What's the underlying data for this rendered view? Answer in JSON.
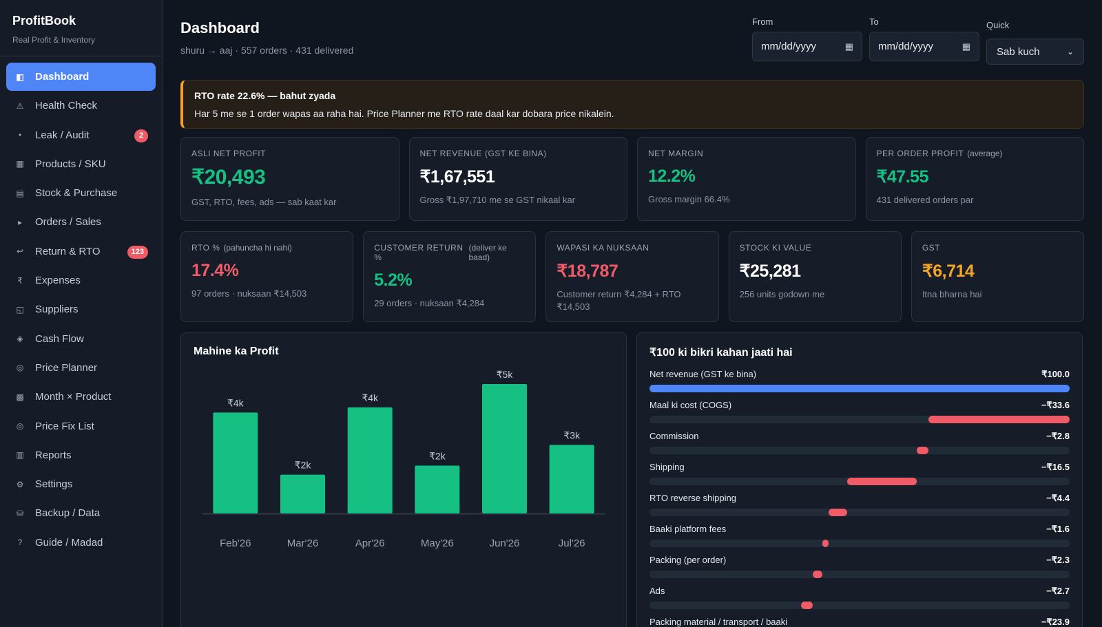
{
  "brand": {
    "title": "ProfitBook",
    "subtitle": "Real Profit & Inventory"
  },
  "nav": [
    {
      "label": "Dashboard",
      "icon": "◧",
      "name": "dashboard",
      "active": true,
      "badge": ""
    },
    {
      "label": "Health Check",
      "icon": "⚠",
      "name": "health-check",
      "active": false,
      "badge": ""
    },
    {
      "label": "Leak / Audit",
      "icon": "•",
      "name": "leak-audit",
      "active": false,
      "badge": "2"
    },
    {
      "label": "Products / SKU",
      "icon": "▦",
      "name": "products-sku",
      "active": false,
      "badge": ""
    },
    {
      "label": "Stock & Purchase",
      "icon": "▤",
      "name": "stock-purchase",
      "active": false,
      "badge": ""
    },
    {
      "label": "Orders / Sales",
      "icon": "▸",
      "name": "orders-sales",
      "active": false,
      "badge": ""
    },
    {
      "label": "Return & RTO",
      "icon": "↩",
      "name": "return-rto",
      "active": false,
      "badge": "123"
    },
    {
      "label": "Expenses",
      "icon": "₹",
      "name": "expenses",
      "active": false,
      "badge": ""
    },
    {
      "label": "Suppliers",
      "icon": "◱",
      "name": "suppliers",
      "active": false,
      "badge": ""
    },
    {
      "label": "Cash Flow",
      "icon": "◈",
      "name": "cash-flow",
      "active": false,
      "badge": ""
    },
    {
      "label": "Price Planner",
      "icon": "◎",
      "name": "price-planner",
      "active": false,
      "badge": ""
    },
    {
      "label": "Month × Product",
      "icon": "▩",
      "name": "month-product",
      "active": false,
      "badge": ""
    },
    {
      "label": "Price Fix List",
      "icon": "◎",
      "name": "price-fix-list",
      "active": false,
      "badge": ""
    },
    {
      "label": "Reports",
      "icon": "▥",
      "name": "reports",
      "active": false,
      "badge": ""
    },
    {
      "label": "Settings",
      "icon": "⚙",
      "name": "settings",
      "active": false,
      "badge": ""
    },
    {
      "label": "Backup / Data",
      "icon": "⛁",
      "name": "backup-data",
      "active": false,
      "badge": ""
    },
    {
      "label": "Guide / Madad",
      "icon": "?",
      "name": "guide-madad",
      "active": false,
      "badge": ""
    }
  ],
  "header": {
    "title": "Dashboard",
    "subtitle": "shuru → aaj · 557 orders · 431 delivered",
    "from_label": "From",
    "from_value": "mm/dd/yyyy",
    "to_label": "To",
    "to_value": "mm/dd/yyyy",
    "quick_label": "Quick",
    "quick_value": "Sab kuch"
  },
  "alert": {
    "title": "RTO rate 22.6% — bahut zyada",
    "text": "Har 5 me se 1 order wapas aa raha hai. Price Planner me RTO rate daal kar dobara price nikalein."
  },
  "cards_row1": [
    {
      "label": "ASLI NET PROFIT",
      "small": "",
      "value": "₹20,493",
      "note": "GST, RTO, fees, ads — sab kaat kar",
      "color": "green",
      "big": true
    },
    {
      "label": "NET REVENUE (GST KE BINA)",
      "small": "",
      "value": "₹1,67,551",
      "note": "Gross ₹1,97,710 me se GST nikaal kar",
      "color": "white",
      "big": false
    },
    {
      "label": "NET MARGIN",
      "small": "",
      "value": "12.2%",
      "note": "Gross margin 66.4%",
      "color": "green",
      "big": false
    },
    {
      "label": "PER ORDER PROFIT",
      "small": "(average)",
      "value": "₹47.55",
      "note": "431 delivered orders par",
      "color": "green",
      "big": false
    }
  ],
  "cards_row2": [
    {
      "label": "RTO %",
      "small": "(pahuncha hi nahi)",
      "value": "17.4%",
      "note": "97 orders · nuksaan ₹14,503",
      "color": "red"
    },
    {
      "label": "CUSTOMER RETURN %",
      "small": "(deliver ke baad)",
      "value": "5.2%",
      "note": "29 orders · nuksaan ₹4,284",
      "color": "green"
    },
    {
      "label": "WAPASI KA NUKSAAN",
      "small": "",
      "value": "₹18,787",
      "note": "Customer return ₹4,284 + RTO ₹14,503",
      "color": "red"
    },
    {
      "label": "STOCK KI VALUE",
      "small": "",
      "value": "₹25,281",
      "note": "256 units godown me",
      "color": "white"
    },
    {
      "label": "GST",
      "small": "",
      "value": "₹6,714",
      "note": "Itna bharna hai",
      "color": "amber"
    }
  ],
  "chart_data": {
    "type": "bar",
    "title": "Mahine ka Profit",
    "categories": [
      "Feb'26",
      "Mar'26",
      "Apr'26",
      "May'26",
      "Jun'26",
      "Jul'26"
    ],
    "values": [
      3900,
      1500,
      4100,
      1850,
      5000,
      2650
    ],
    "data_labels": [
      "₹4k",
      "₹2k",
      "₹4k",
      "₹2k",
      "₹5k",
      "₹3k"
    ],
    "ylim": [
      0,
      5000
    ],
    "bar_color": "#16c083",
    "grid": false,
    "legend": "none"
  },
  "breakdown": {
    "title": "₹100 ki bikri kahan jaati hai",
    "items": [
      {
        "label": "Net revenue (GST ke bina)",
        "value_text": "₹100.0",
        "value": 100.0,
        "start": 0,
        "color": "#4f86f7"
      },
      {
        "label": "Maal ki cost (COGS)",
        "value_text": "−₹33.6",
        "value": 33.6,
        "start": 66.4,
        "color": "#ef5b66"
      },
      {
        "label": "Commission",
        "value_text": "−₹2.8",
        "value": 2.8,
        "start": 63.6,
        "color": "#ef5b66"
      },
      {
        "label": "Shipping",
        "value_text": "−₹16.5",
        "value": 16.5,
        "start": 47.1,
        "color": "#ef5b66"
      },
      {
        "label": "RTO reverse shipping",
        "value_text": "−₹4.4",
        "value": 4.4,
        "start": 42.7,
        "color": "#ef5b66"
      },
      {
        "label": "Baaki platform fees",
        "value_text": "−₹1.6",
        "value": 1.6,
        "start": 41.1,
        "color": "#ef5b66"
      },
      {
        "label": "Packing (per order)",
        "value_text": "−₹2.3",
        "value": 2.3,
        "start": 38.8,
        "color": "#ef5b66"
      },
      {
        "label": "Ads",
        "value_text": "−₹2.7",
        "value": 2.7,
        "start": 36.1,
        "color": "#ef5b66"
      },
      {
        "label": "Packing material / transport / baaki",
        "value_text": "−₹23.9",
        "value": 23.9,
        "start": 12.2,
        "color": "#ef5b66"
      }
    ]
  }
}
